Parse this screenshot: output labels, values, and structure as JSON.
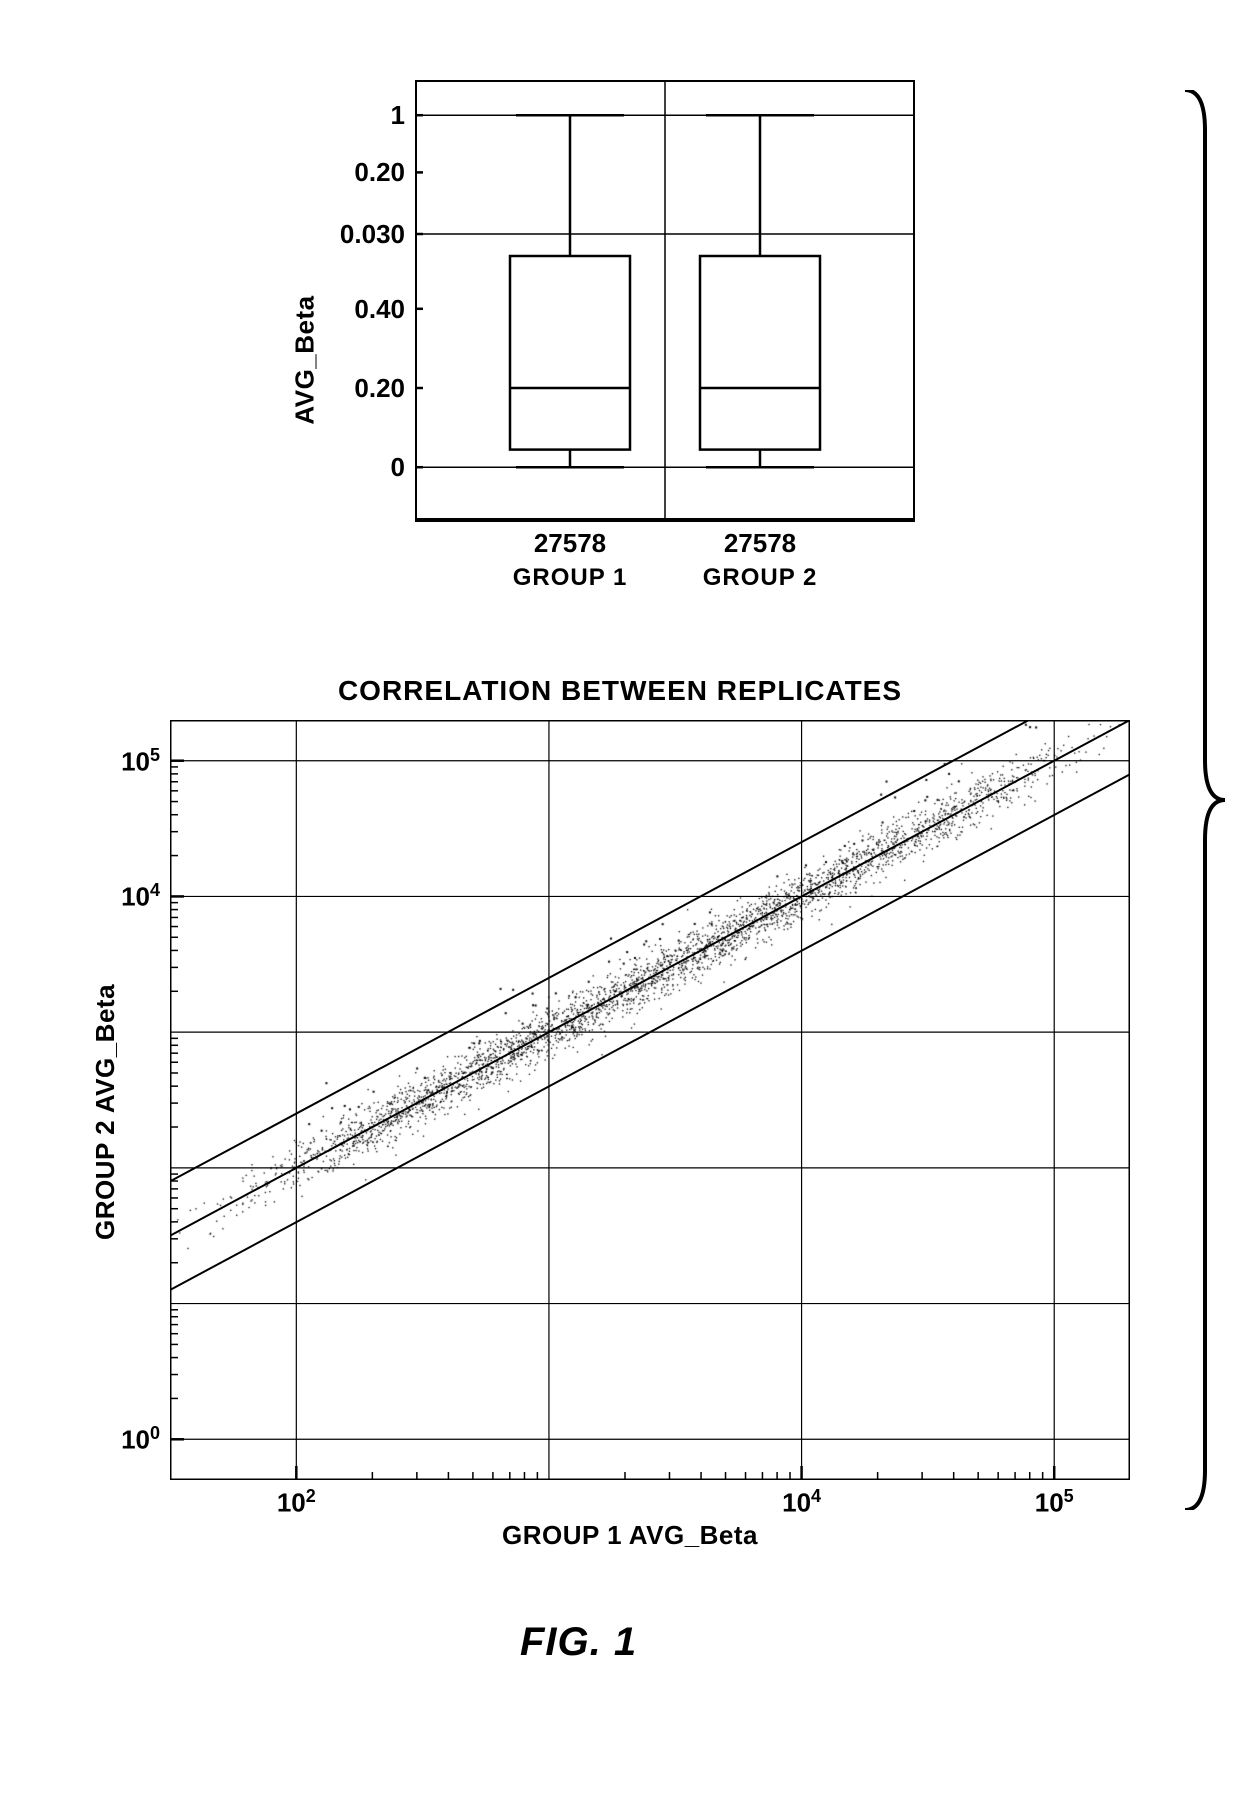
{
  "figure_caption": "FIG. 1",
  "background_color": "#ffffff",
  "stroke_color": "#000000",
  "boxplot": {
    "type": "boxplot",
    "ylabel": "AVG_Beta",
    "ytick_labels": [
      "1",
      "0.20",
      "0.030",
      "0.40",
      "0.20",
      "0"
    ],
    "ytick_positions": [
      0.08,
      0.21,
      0.35,
      0.52,
      0.7,
      0.88
    ],
    "ygrid_positions": [
      0.08,
      0.35,
      0.88
    ],
    "categories": [
      "GROUP 1",
      "GROUP 2"
    ],
    "counts": [
      "27578",
      "27578"
    ],
    "boxes": [
      {
        "x_center": 0.31,
        "width": 0.24,
        "q1": 0.84,
        "median": 0.7,
        "q3": 0.4,
        "whisker_low": 0.88,
        "whisker_high": 0.08
      },
      {
        "x_center": 0.69,
        "width": 0.24,
        "q1": 0.84,
        "median": 0.7,
        "q3": 0.4,
        "whisker_low": 0.88,
        "whisker_high": 0.08
      }
    ],
    "border_width": 4,
    "line_width": 2.5,
    "label_fontsize": 26,
    "tick_fontsize": 26
  },
  "scatter": {
    "type": "scatter",
    "title": "CORRELATION BETWEEN REPLICATES",
    "xlabel": "GROUP 1 AVG_Beta",
    "ylabel": "GROUP 2 AVG_Beta",
    "xscale": "log",
    "yscale": "log",
    "x_range_log": [
      1.5,
      5.3
    ],
    "y_range_log": [
      5.3,
      -0.3
    ],
    "xtick_labels": [
      "10^2",
      "10^4",
      "10^5"
    ],
    "xtick_log_values": [
      2,
      4,
      5
    ],
    "ytick_labels": [
      "10^0",
      "10^4",
      "10^5"
    ],
    "ytick_log_values": [
      0,
      4,
      5
    ],
    "xgrid_log_values": [
      2,
      3,
      4,
      5
    ],
    "ygrid_log_values": [
      0,
      1,
      2,
      3,
      4,
      5
    ],
    "diagonal_lines": [
      {
        "offset": -0.4
      },
      {
        "offset": 0.0
      },
      {
        "offset": 0.4
      }
    ],
    "point_count": 3500,
    "point_spread": 0.09,
    "point_size": 1.3,
    "point_color": "#000000",
    "grid_color": "#000000",
    "border_width": 3,
    "grid_width": 1.2,
    "title_fontsize": 28,
    "label_fontsize": 26,
    "tick_fontsize": 26,
    "diagonal_line_width": 2
  }
}
